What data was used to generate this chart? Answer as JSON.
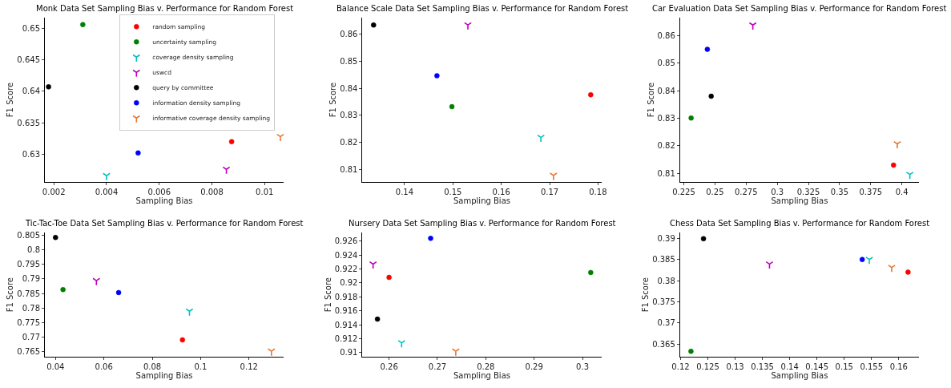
{
  "chart_data": [
    {
      "type": "scatter",
      "title": "Monk Data Set Sampling Bias v. Performance for Random Forest",
      "xlabel": "Sampling Bias",
      "ylabel": "F1 Score",
      "legend": "top right",
      "grid": false,
      "xlim": [
        0.00166,
        0.01073
      ],
      "xticks": [
        0.002,
        0.004,
        0.006,
        0.008,
        0.01
      ],
      "ylim": [
        0.6256,
        0.6517
      ],
      "yticks": [
        0.63,
        0.635,
        0.64,
        0.645,
        0.65
      ],
      "series": [
        {
          "name": "random sampling",
          "color": "#ff0000",
          "marker": "circle",
          "x": [
            0.00875
          ],
          "values": [
            0.632
          ]
        },
        {
          "name": "uncertainty sampling",
          "color": "#008000",
          "marker": "circle",
          "x": [
            0.0031
          ],
          "values": [
            0.6506
          ]
        },
        {
          "name": "coverage density sampling",
          "color": "#00bfbf",
          "marker": "cross",
          "x": [
            0.004
          ],
          "values": [
            0.6266
          ]
        },
        {
          "name": "uswcd",
          "color": "#bf00bf",
          "marker": "cross",
          "x": [
            0.00855
          ],
          "values": [
            0.6276
          ]
        },
        {
          "name": "query by committee",
          "color": "#000000",
          "marker": "circle",
          "x": [
            0.0018
          ],
          "values": [
            0.6407
          ]
        },
        {
          "name": "information density sampling",
          "color": "#0000ff",
          "marker": "circle",
          "x": [
            0.0052
          ],
          "values": [
            0.6302
          ]
        },
        {
          "name": "informative coverage density sampling",
          "color": "#e6772e",
          "marker": "cross",
          "x": [
            0.0106
          ],
          "values": [
            0.6328
          ]
        }
      ]
    },
    {
      "type": "scatter",
      "title": "Balance Scale Data Set Sampling Bias v. Performance for Random Forest",
      "xlabel": "Sampling Bias",
      "ylabel": "F1 Score",
      "grid": false,
      "xlim": [
        0.1313,
        0.1807
      ],
      "xticks": [
        0.14,
        0.15,
        0.16,
        0.17,
        0.18
      ],
      "ylim": [
        0.8055,
        0.866
      ],
      "yticks": [
        0.81,
        0.82,
        0.83,
        0.84,
        0.85,
        0.86
      ],
      "series": [
        {
          "color": "#ff0000",
          "marker": "circle",
          "x": [
            0.1785
          ],
          "values": [
            0.8376
          ]
        },
        {
          "color": "#008000",
          "marker": "circle",
          "x": [
            0.1498
          ],
          "values": [
            0.8332
          ]
        },
        {
          "color": "#00bfbf",
          "marker": "cross",
          "x": [
            0.1682
          ],
          "values": [
            0.8219
          ]
        },
        {
          "color": "#bf00bf",
          "marker": "cross",
          "x": [
            0.1531
          ],
          "values": [
            0.8633
          ]
        },
        {
          "color": "#000000",
          "marker": "circle",
          "x": [
            0.1336
          ],
          "values": [
            0.8633
          ]
        },
        {
          "color": "#0000ff",
          "marker": "circle",
          "x": [
            0.1467
          ],
          "values": [
            0.8446
          ]
        },
        {
          "color": "#e6772e",
          "marker": "cross",
          "x": [
            0.1708
          ],
          "values": [
            0.8079
          ]
        }
      ]
    },
    {
      "type": "scatter",
      "title": "Car Evaluation Data Set Sampling Bias v. Performance for Random Forest",
      "xlabel": "Sampling Bias",
      "ylabel": "F1 Score",
      "grid": false,
      "xlim": [
        0.222,
        0.4137
      ],
      "xticks": [
        0.225,
        0.25,
        0.275,
        0.3,
        0.325,
        0.35,
        0.375,
        0.4
      ],
      "ylim": [
        0.8069,
        0.8665
      ],
      "yticks": [
        0.81,
        0.82,
        0.83,
        0.84,
        0.85,
        0.86
      ],
      "series": [
        {
          "color": "#ff0000",
          "marker": "circle",
          "x": [
            0.3933
          ],
          "values": [
            0.813
          ]
        },
        {
          "color": "#008000",
          "marker": "circle",
          "x": [
            0.2309
          ],
          "values": [
            0.8301
          ]
        },
        {
          "color": "#00bfbf",
          "marker": "cross",
          "x": [
            0.4064
          ],
          "values": [
            0.8096
          ]
        },
        {
          "color": "#bf00bf",
          "marker": "cross",
          "x": [
            0.2804
          ],
          "values": [
            0.8638
          ]
        },
        {
          "color": "#000000",
          "marker": "circle",
          "x": [
            0.247
          ],
          "values": [
            0.838
          ]
        },
        {
          "color": "#0000ff",
          "marker": "circle",
          "x": [
            0.2439
          ],
          "values": [
            0.855
          ]
        },
        {
          "color": "#e6772e",
          "marker": "cross",
          "x": [
            0.3963
          ],
          "values": [
            0.8207
          ]
        }
      ]
    },
    {
      "type": "scatter",
      "title": "Tic-Tac-Toe Data Set Sampling Bias v. Performance for Random Forest",
      "xlabel": "Sampling Bias",
      "ylabel": "F1 Score",
      "grid": false,
      "xlim": [
        0.0356,
        0.1344
      ],
      "xticks": [
        0.04,
        0.06,
        0.08,
        0.1,
        0.12
      ],
      "ylim": [
        0.7633,
        0.8058
      ],
      "yticks": [
        0.765,
        0.77,
        0.775,
        0.78,
        0.785,
        0.79,
        0.795,
        0.8,
        0.805
      ],
      "series": [
        {
          "color": "#ff0000",
          "marker": "circle",
          "x": [
            0.0925
          ],
          "values": [
            0.7691
          ]
        },
        {
          "color": "#008000",
          "marker": "circle",
          "x": [
            0.0431
          ],
          "values": [
            0.7863
          ]
        },
        {
          "color": "#00bfbf",
          "marker": "cross",
          "x": [
            0.0954
          ],
          "values": [
            0.7789
          ]
        },
        {
          "color": "#bf00bf",
          "marker": "cross",
          "x": [
            0.0569
          ],
          "values": [
            0.7894
          ]
        },
        {
          "color": "#000000",
          "marker": "circle",
          "x": [
            0.04
          ],
          "values": [
            0.8042
          ]
        },
        {
          "color": "#0000ff",
          "marker": "circle",
          "x": [
            0.0661
          ],
          "values": [
            0.7853
          ]
        },
        {
          "color": "#e6772e",
          "marker": "cross",
          "x": [
            0.1293
          ],
          "values": [
            0.7652
          ]
        }
      ]
    },
    {
      "type": "scatter",
      "title": "Nursery Data Set Sampling Bias v. Performance for Random Forest",
      "xlabel": "Sampling Bias",
      "ylabel": "F1 Score",
      "grid": false,
      "xlim": [
        0.2545,
        0.3039
      ],
      "xticks": [
        0.26,
        0.27,
        0.28,
        0.29,
        0.3
      ],
      "ylim": [
        0.9094,
        0.9272
      ],
      "yticks": [
        0.91,
        0.912,
        0.914,
        0.916,
        0.918,
        0.92,
        0.922,
        0.924,
        0.926
      ],
      "series": [
        {
          "color": "#ff0000",
          "marker": "circle",
          "x": [
            0.26
          ],
          "values": [
            0.9208
          ]
        },
        {
          "color": "#008000",
          "marker": "circle",
          "x": [
            0.3017
          ],
          "values": [
            0.9215
          ]
        },
        {
          "color": "#00bfbf",
          "marker": "cross",
          "x": [
            0.2626
          ],
          "values": [
            0.9114
          ]
        },
        {
          "color": "#bf00bf",
          "marker": "cross",
          "x": [
            0.2567
          ],
          "values": [
            0.9227
          ]
        },
        {
          "color": "#000000",
          "marker": "circle",
          "x": [
            0.2576
          ],
          "values": [
            0.9148
          ]
        },
        {
          "color": "#0000ff",
          "marker": "circle",
          "x": [
            0.2686
          ],
          "values": [
            0.9264
          ]
        },
        {
          "color": "#e6772e",
          "marker": "cross",
          "x": [
            0.2738
          ],
          "values": [
            0.9102
          ]
        }
      ]
    },
    {
      "type": "scatter",
      "title": "Chess Data Set Sampling Bias v. Performance for Random Forest",
      "xlabel": "Sampling Bias",
      "ylabel": "F1 Score",
      "grid": false,
      "xlim": [
        0.1199,
        0.1637
      ],
      "xticks": [
        0.12,
        0.125,
        0.13,
        0.135,
        0.14,
        0.145,
        0.15,
        0.155,
        0.16
      ],
      "ylim": [
        0.362,
        0.3913
      ],
      "yticks": [
        0.365,
        0.37,
        0.375,
        0.38,
        0.385,
        0.39
      ],
      "series": [
        {
          "color": "#ff0000",
          "marker": "circle",
          "x": [
            0.1617
          ],
          "values": [
            0.382
          ]
        },
        {
          "color": "#008000",
          "marker": "circle",
          "x": [
            0.1219
          ],
          "values": [
            0.3633
          ]
        },
        {
          "color": "#00bfbf",
          "marker": "cross",
          "x": [
            0.1546
          ],
          "values": [
            0.385
          ]
        },
        {
          "color": "#bf00bf",
          "marker": "cross",
          "x": [
            0.1363
          ],
          "values": [
            0.3839
          ]
        },
        {
          "color": "#000000",
          "marker": "circle",
          "x": [
            0.1242
          ],
          "values": [
            0.3899
          ]
        },
        {
          "color": "#0000ff",
          "marker": "circle",
          "x": [
            0.1533
          ],
          "values": [
            0.385
          ]
        },
        {
          "color": "#e6772e",
          "marker": "cross",
          "x": [
            0.1587
          ],
          "values": [
            0.3831
          ]
        }
      ]
    }
  ]
}
